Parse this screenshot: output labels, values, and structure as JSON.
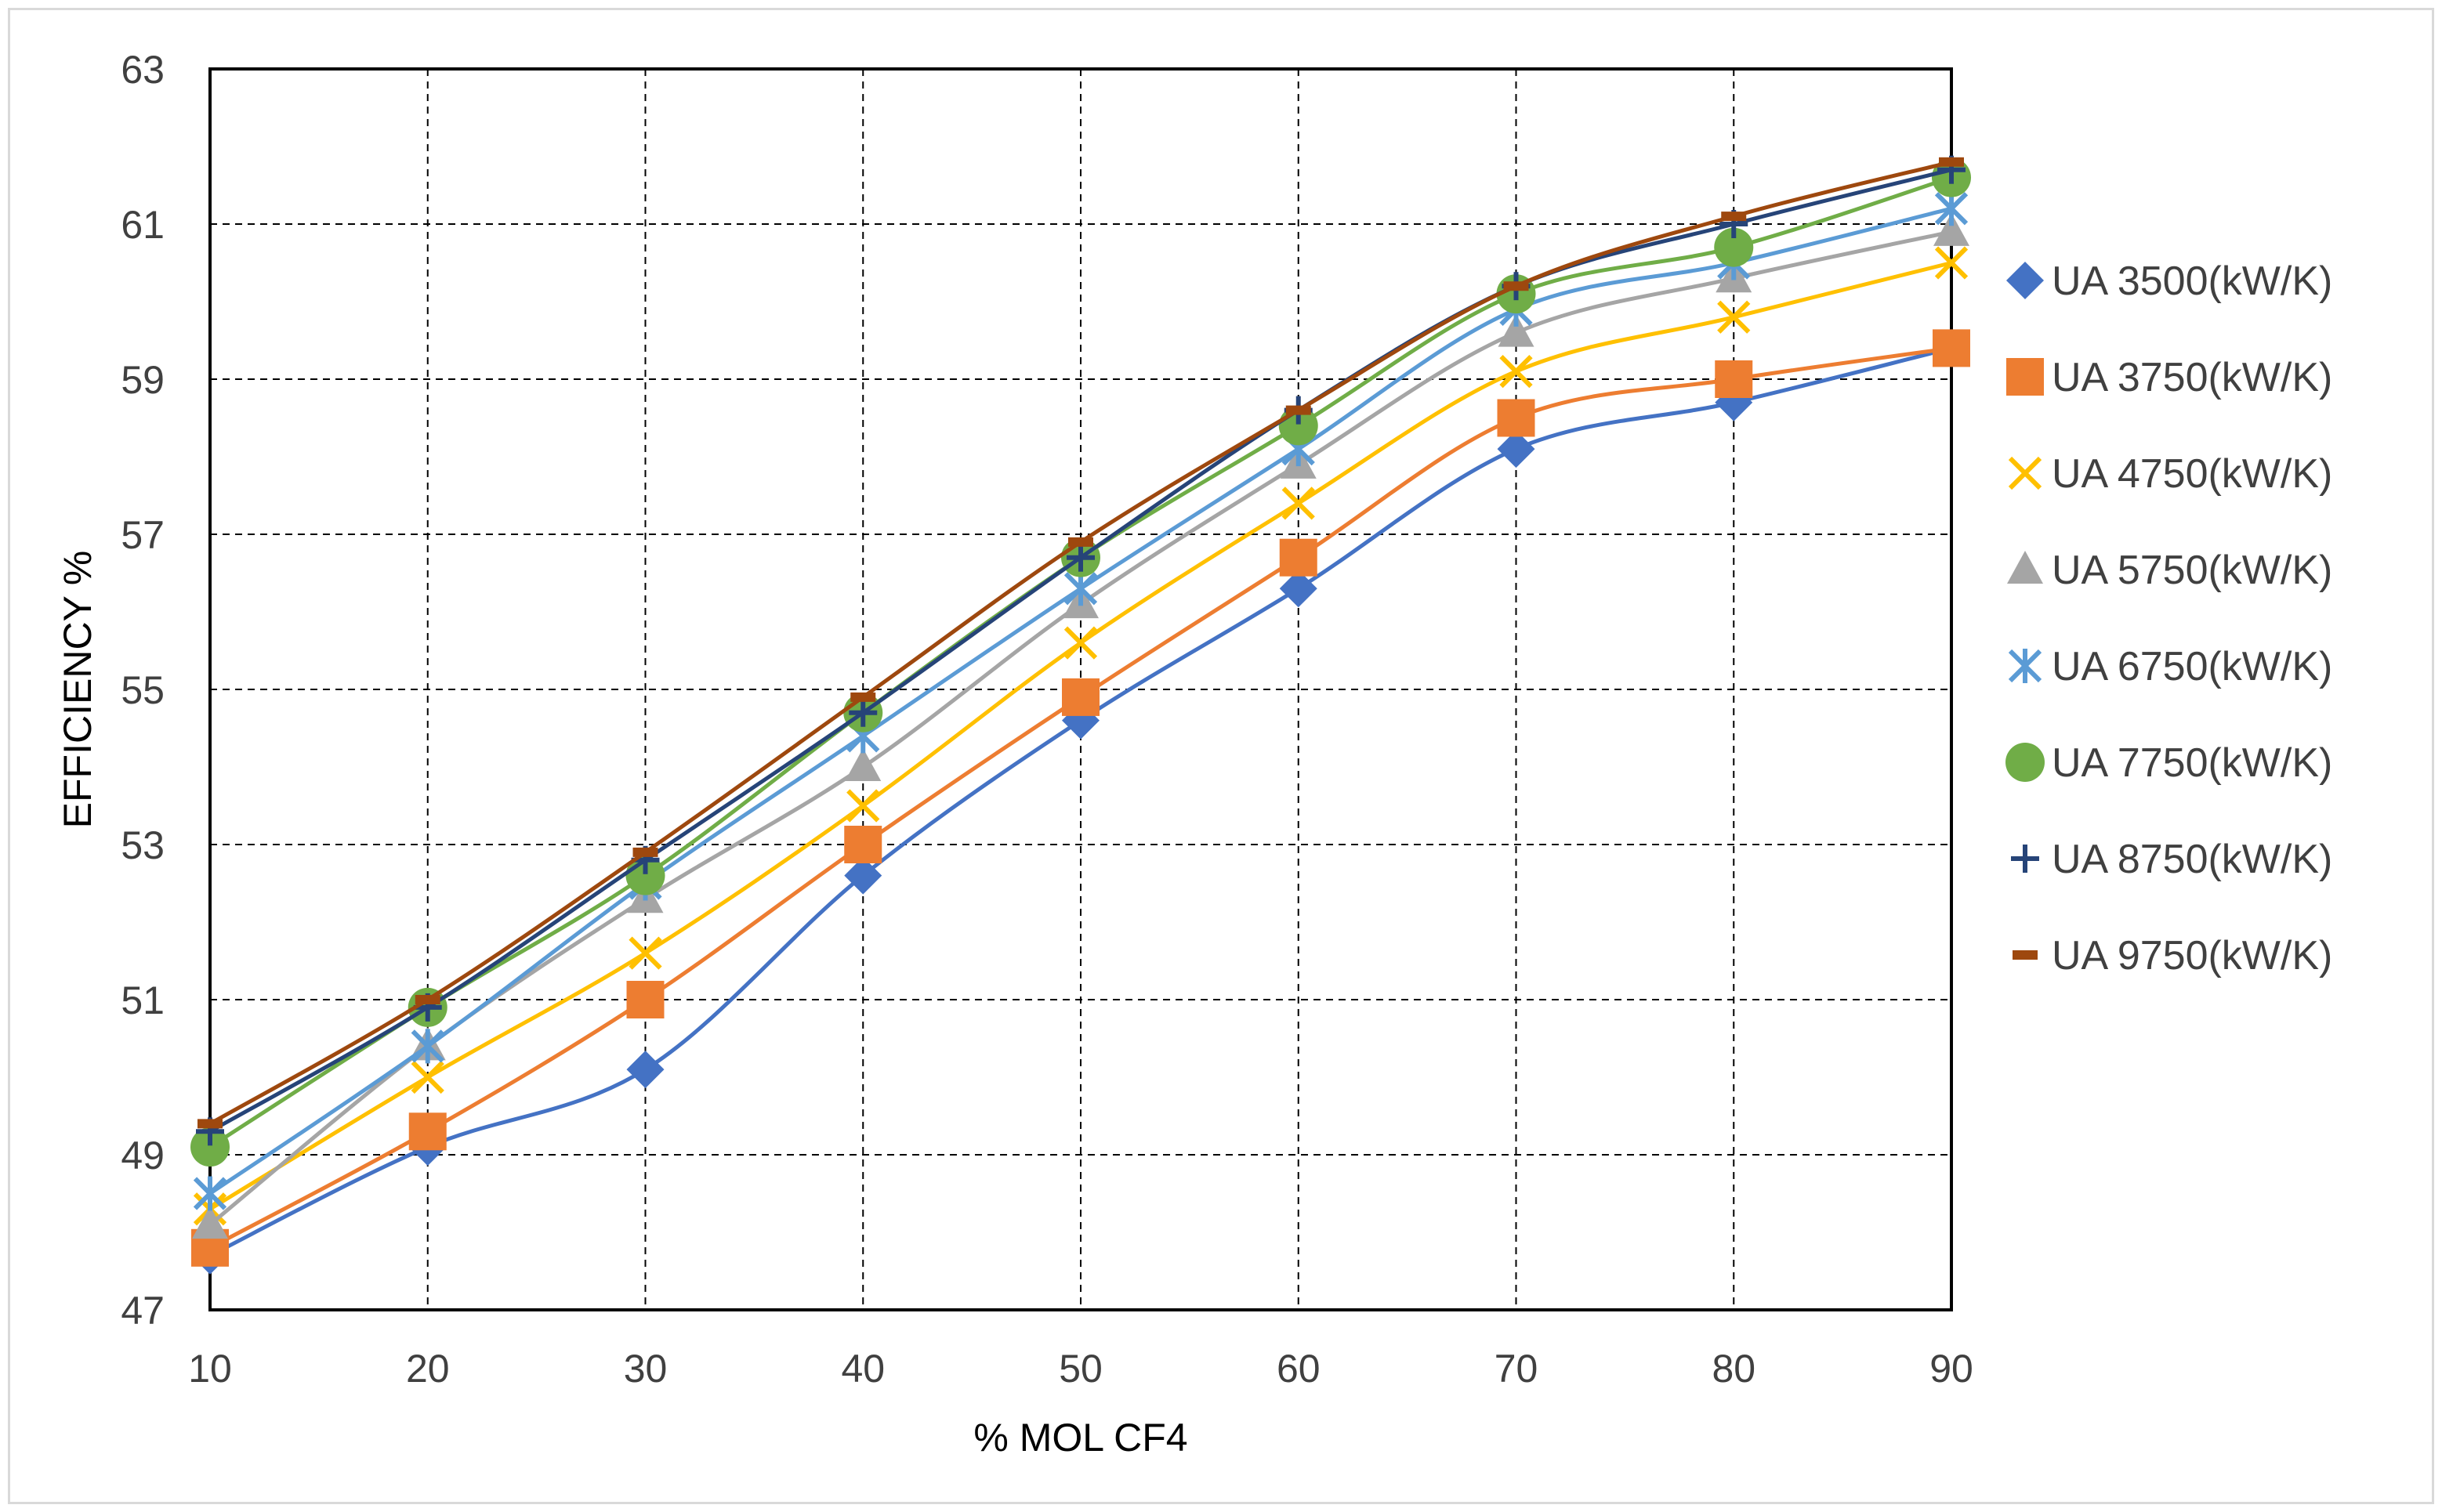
{
  "chart_data": {
    "type": "scatter",
    "title": "",
    "xlabel": "% MOL CF4",
    "ylabel": "EFFICIENCY %",
    "xlim": [
      10,
      90
    ],
    "ylim": [
      47,
      63
    ],
    "xticks": [
      10,
      20,
      30,
      40,
      50,
      60,
      70,
      80,
      90
    ],
    "yticks": [
      47,
      49,
      51,
      53,
      55,
      57,
      59,
      61,
      63
    ],
    "grid": "dashed",
    "legend_position": "right",
    "x": [
      10,
      20,
      30,
      40,
      50,
      60,
      70,
      80,
      90
    ],
    "series": [
      {
        "name": "UA 3500(kW/K)",
        "color": "#4472c4",
        "marker": "diamond",
        "values": [
          47.7,
          49.1,
          50.1,
          52.6,
          54.6,
          56.3,
          58.1,
          58.7,
          59.4
        ]
      },
      {
        "name": "UA 3750(kW/K)",
        "color": "#ed7d31",
        "marker": "square",
        "values": [
          47.8,
          49.3,
          51.0,
          53.0,
          54.9,
          56.7,
          58.5,
          59.0,
          59.4
        ]
      },
      {
        "name": "UA 4750(kW/K)",
        "color": "#ffc000",
        "marker": "x",
        "values": [
          48.3,
          50.0,
          51.6,
          53.5,
          55.6,
          57.4,
          59.1,
          59.8,
          60.5
        ]
      },
      {
        "name": "UA 5750(kW/K)",
        "color": "#a5a5a5",
        "marker": "triangle",
        "values": [
          48.1,
          50.4,
          52.3,
          54.0,
          56.1,
          57.9,
          59.6,
          60.3,
          60.9
        ]
      },
      {
        "name": "UA 6750(kW/K)",
        "color": "#5b9bd5",
        "marker": "asterisk",
        "values": [
          48.5,
          50.4,
          52.5,
          54.4,
          56.3,
          58.1,
          59.9,
          60.5,
          61.2
        ]
      },
      {
        "name": "UA 7750(kW/K)",
        "color": "#70ad47",
        "marker": "circle",
        "values": [
          49.1,
          50.9,
          52.6,
          54.7,
          56.7,
          58.4,
          60.1,
          60.7,
          61.6
        ]
      },
      {
        "name": "UA 8750(kW/K)",
        "color": "#264478",
        "marker": "plus",
        "values": [
          49.3,
          50.9,
          52.8,
          54.7,
          56.7,
          58.6,
          60.2,
          61.0,
          61.7
        ]
      },
      {
        "name": "UA 9750(kW/K)",
        "color": "#9e480e",
        "marker": "dash",
        "values": [
          49.4,
          51.0,
          52.9,
          54.9,
          56.9,
          58.6,
          60.2,
          61.1,
          61.8
        ]
      }
    ]
  }
}
